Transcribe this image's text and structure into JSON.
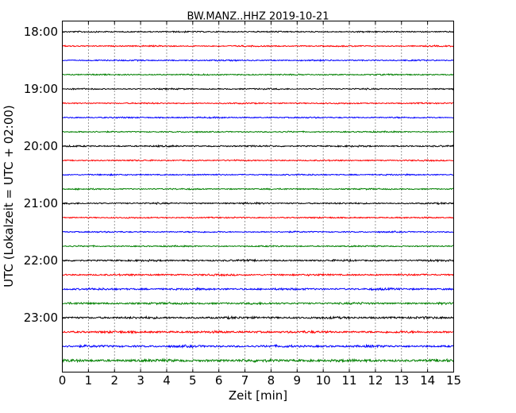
{
  "chart_data": {
    "type": "line",
    "title": "BW.MANZ..HHZ 2019-10-21",
    "xlabel": "Zeit  [min]",
    "ylabel": "UTC (Lokalzeit = UTC + 02:00)",
    "xlim": [
      0,
      15
    ],
    "x_ticks": [
      "0",
      "1",
      "2",
      "3",
      "4",
      "5",
      "6",
      "7",
      "8",
      "9",
      "10",
      "11",
      "12",
      "13",
      "14",
      "15"
    ],
    "y_ticks": [
      "18:00",
      "19:00",
      "20:00",
      "21:00",
      "22:00",
      "23:00"
    ],
    "grid": "vertical dotted",
    "series_colors": [
      "#000000",
      "#ff0000",
      "#0000ff",
      "#008000"
    ],
    "traces": [
      {
        "start": "18:00",
        "color": "#000000",
        "amplitude": 0.6
      },
      {
        "start": "18:15",
        "color": "#ff0000",
        "amplitude": 0.6
      },
      {
        "start": "18:30",
        "color": "#0000ff",
        "amplitude": 0.6
      },
      {
        "start": "18:45",
        "color": "#008000",
        "amplitude": 0.6
      },
      {
        "start": "19:00",
        "color": "#000000",
        "amplitude": 0.6
      },
      {
        "start": "19:15",
        "color": "#ff0000",
        "amplitude": 0.6
      },
      {
        "start": "19:30",
        "color": "#0000ff",
        "amplitude": 0.6
      },
      {
        "start": "19:45",
        "color": "#008000",
        "amplitude": 0.6
      },
      {
        "start": "20:00",
        "color": "#000000",
        "amplitude": 0.7
      },
      {
        "start": "20:15",
        "color": "#ff0000",
        "amplitude": 0.6
      },
      {
        "start": "20:30",
        "color": "#0000ff",
        "amplitude": 0.6
      },
      {
        "start": "20:45",
        "color": "#008000",
        "amplitude": 0.6
      },
      {
        "start": "21:00",
        "color": "#000000",
        "amplitude": 0.7
      },
      {
        "start": "21:15",
        "color": "#ff0000",
        "amplitude": 0.6
      },
      {
        "start": "21:30",
        "color": "#0000ff",
        "amplitude": 0.6
      },
      {
        "start": "21:45",
        "color": "#008000",
        "amplitude": 0.6
      },
      {
        "start": "22:00",
        "color": "#000000",
        "amplitude": 0.8
      },
      {
        "start": "22:15",
        "color": "#ff0000",
        "amplitude": 0.8
      },
      {
        "start": "22:30",
        "color": "#0000ff",
        "amplitude": 0.9
      },
      {
        "start": "22:45",
        "color": "#008000",
        "amplitude": 0.9
      },
      {
        "start": "23:00",
        "color": "#000000",
        "amplitude": 1.0
      },
      {
        "start": "23:15",
        "color": "#ff0000",
        "amplitude": 1.0
      },
      {
        "start": "23:30",
        "color": "#0000ff",
        "amplitude": 1.0
      },
      {
        "start": "23:45",
        "color": "#008000",
        "amplitude": 1.2
      }
    ]
  }
}
